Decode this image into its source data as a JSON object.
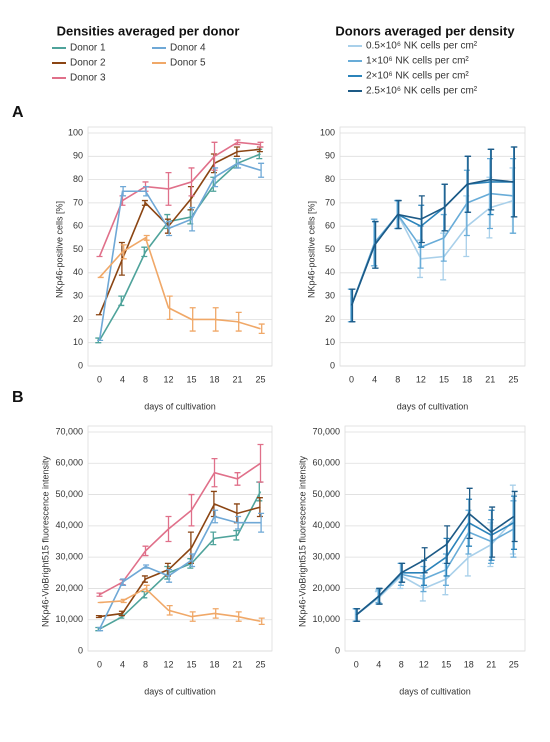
{
  "column_titles": [
    "Densities averaged per donor",
    "Donors averaged per density"
  ],
  "panel_labels": [
    "A",
    "B"
  ],
  "chart_data": [
    {
      "type": "line",
      "xlabel": "days of cultivation",
      "ylabel": "NKp46-positive cells [%]",
      "categories": [
        "0",
        "4",
        "8",
        "12",
        "15",
        "18",
        "21",
        "25"
      ],
      "ylim": [
        0,
        100
      ],
      "yticks": [
        0,
        10,
        20,
        30,
        40,
        50,
        60,
        70,
        80,
        90,
        100
      ],
      "grid": true,
      "series": [
        {
          "name": "Donor 1",
          "color": "#4fa39b",
          "values": [
            11,
            28,
            49,
            62,
            64,
            78,
            87,
            91
          ],
          "errors": [
            1,
            2,
            2,
            3,
            3,
            3,
            2,
            2
          ]
        },
        {
          "name": "Donor 2",
          "color": "#8b4513",
          "values": [
            22,
            46,
            70,
            60,
            72,
            87,
            92,
            93
          ],
          "errors": [
            0,
            7,
            1,
            3,
            5,
            4,
            2,
            1
          ]
        },
        {
          "name": "Donor 3",
          "color": "#e0708a",
          "values": [
            47,
            71,
            77,
            76,
            79,
            90,
            96,
            95
          ],
          "errors": [
            0,
            2,
            2,
            7,
            6,
            6,
            1,
            1
          ]
        },
        {
          "name": "Donor 4",
          "color": "#6fa8d6",
          "values": [
            11,
            75,
            75,
            59,
            63,
            81,
            87,
            84
          ],
          "errors": [
            0,
            2,
            2,
            3,
            5,
            4,
            2,
            3
          ]
        },
        {
          "name": "Donor 5",
          "color": "#f0a868",
          "values": [
            38,
            49,
            55,
            25,
            20,
            20,
            19,
            16
          ],
          "errors": [
            0,
            3,
            1,
            5,
            5,
            5,
            4,
            2
          ]
        }
      ]
    },
    {
      "type": "line",
      "xlabel": "days of cultivation",
      "ylabel": "NKp46-positive cells [%]",
      "categories": [
        "0",
        "4",
        "8",
        "12",
        "15",
        "18",
        "21",
        "25"
      ],
      "ylim": [
        0,
        100
      ],
      "yticks": [
        0,
        10,
        20,
        30,
        40,
        50,
        60,
        70,
        80,
        90,
        100
      ],
      "grid": true,
      "series": [
        {
          "name": "0.5×10⁶ NK cells per cm²",
          "color": "#a9d0ea",
          "values": [
            26,
            53,
            65,
            46,
            47,
            60,
            68,
            71
          ],
          "errors": [
            7,
            10,
            6,
            8,
            10,
            13,
            13,
            14
          ]
        },
        {
          "name": "1×10⁶ NK cells per cm²",
          "color": "#68acd8",
          "values": [
            26,
            53,
            65,
            51,
            55,
            70,
            74,
            73
          ],
          "errors": [
            7,
            10,
            6,
            9,
            10,
            14,
            15,
            16
          ]
        },
        {
          "name": "2×10⁶ NK cells per cm²",
          "color": "#2b83ba",
          "values": [
            26,
            52,
            65,
            60,
            68,
            78,
            79,
            79
          ],
          "errors": [
            7,
            10,
            6,
            9,
            10,
            12,
            14,
            15
          ]
        },
        {
          "name": "2.5×10⁶ NK cells per cm²",
          "color": "#1d5a86",
          "values": [
            26,
            52,
            65,
            63,
            68,
            78,
            80,
            79
          ],
          "errors": [
            7,
            10,
            6,
            10,
            10,
            12,
            13,
            15
          ]
        }
      ]
    },
    {
      "type": "line",
      "xlabel": "days of cultivation",
      "ylabel": "NKp46-VioBright515 fluorescence intensity",
      "categories": [
        "0",
        "4",
        "8",
        "12",
        "15",
        "18",
        "21",
        "25"
      ],
      "ylim": [
        0,
        70000
      ],
      "yticks": [
        0,
        {
          "value": 10000,
          "label": "10,000"
        },
        {
          "value": 20000,
          "label": "20,000"
        },
        {
          "value": 30000,
          "label": "30,000"
        },
        {
          "value": 40000,
          "label": "40,000"
        },
        {
          "value": 50000,
          "label": "50,000"
        },
        {
          "value": 60000,
          "label": "60,000"
        },
        {
          "value": 70000,
          "label": "70,000"
        }
      ],
      "grid": true,
      "series": [
        {
          "color": "#4fa39b",
          "values": [
            7000,
            11000,
            18000,
            25000,
            28000,
            36000,
            37000,
            51000
          ],
          "errors": [
            500,
            500,
            1000,
            2000,
            1500,
            2000,
            1500,
            3000
          ]
        },
        {
          "color": "#8b4513",
          "values": [
            11000,
            12000,
            23000,
            26000,
            33000,
            47000,
            44000,
            46000
          ],
          "errors": [
            300,
            700,
            1000,
            2000,
            5000,
            4000,
            3000,
            3000
          ]
        },
        {
          "color": "#e0708a",
          "values": [
            18000,
            22000,
            32000,
            39000,
            45000,
            57000,
            55000,
            60000
          ],
          "errors": [
            500,
            800,
            1500,
            4000,
            5000,
            4500,
            2000,
            6000
          ]
        },
        {
          "color": "#6fa8d6",
          "values": [
            7000,
            22000,
            27000,
            24000,
            29000,
            43000,
            41000,
            41000
          ],
          "errors": [
            500,
            1000,
            500,
            2000,
            2000,
            2000,
            2000,
            3000
          ]
        },
        {
          "color": "#f0a868",
          "values": [
            15500,
            16000,
            20000,
            13000,
            11000,
            12000,
            11000,
            9500
          ],
          "errors": [
            0,
            500,
            1000,
            1500,
            1500,
            1500,
            1500,
            1000
          ]
        }
      ]
    },
    {
      "type": "line",
      "xlabel": "days of cultivation",
      "ylabel": "NKp46-VioBright515 fluorescence intensity",
      "categories": [
        "0",
        "4",
        "8",
        "12",
        "15",
        "18",
        "21",
        "25"
      ],
      "ylim": [
        0,
        70000
      ],
      "yticks": [
        0,
        {
          "value": 10000,
          "label": "10,000"
        },
        {
          "value": 20000,
          "label": "20,000"
        },
        {
          "value": 30000,
          "label": "30,000"
        },
        {
          "value": 40000,
          "label": "40,000"
        },
        {
          "value": 50000,
          "label": "50,000"
        },
        {
          "value": 60000,
          "label": "60,000"
        },
        {
          "value": 70000,
          "label": "70,000"
        }
      ],
      "grid": true,
      "series": [
        {
          "color": "#a9d0ea",
          "values": [
            11500,
            17000,
            24000,
            20000,
            23000,
            30000,
            34000,
            42000
          ],
          "errors": [
            2000,
            2000,
            4000,
            4000,
            5000,
            6000,
            7000,
            11000
          ]
        },
        {
          "color": "#68acd8",
          "values": [
            11500,
            17500,
            24500,
            23000,
            26000,
            38000,
            35000,
            39000
          ],
          "errors": [
            2000,
            2000,
            3500,
            4000,
            5000,
            7000,
            7000,
            9000
          ]
        },
        {
          "color": "#2b83ba",
          "values": [
            11500,
            17500,
            25000,
            25000,
            30000,
            41000,
            37000,
            41000
          ],
          "errors": [
            2000,
            2500,
            3000,
            4000,
            6000,
            7500,
            8000,
            8500
          ]
        },
        {
          "color": "#1d5a86",
          "values": [
            11500,
            17500,
            25000,
            29000,
            34000,
            44000,
            38000,
            43000
          ],
          "errors": [
            2000,
            2500,
            3000,
            4000,
            6000,
            8000,
            8000,
            8000
          ]
        }
      ]
    }
  ]
}
